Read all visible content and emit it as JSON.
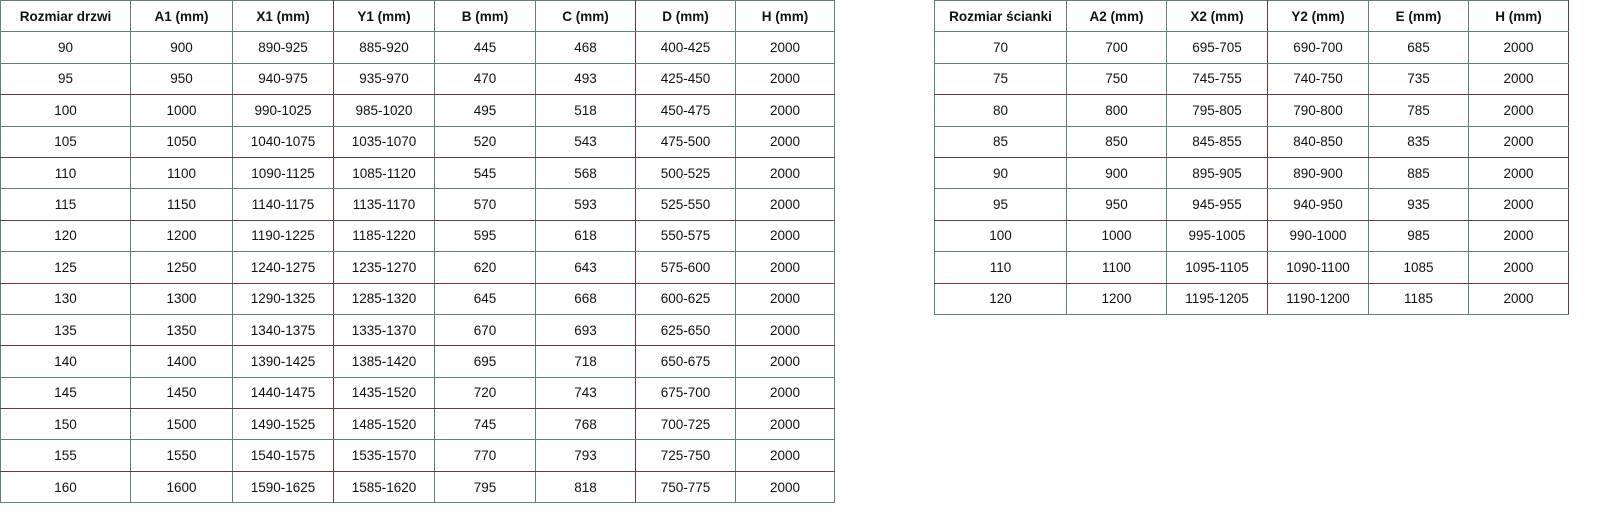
{
  "door_table": {
    "headers": [
      "Rozmiar drzwi",
      "A1 (mm)",
      "X1 (mm)",
      "Y1 (mm)",
      "B (mm)",
      "C (mm)",
      "D (mm)",
      "H (mm)"
    ],
    "rows": [
      [
        "90",
        "900",
        "890-925",
        "885-920",
        "445",
        "468",
        "400-425",
        "2000"
      ],
      [
        "95",
        "950",
        "940-975",
        "935-970",
        "470",
        "493",
        "425-450",
        "2000"
      ],
      [
        "100",
        "1000",
        "990-1025",
        "985-1020",
        "495",
        "518",
        "450-475",
        "2000"
      ],
      [
        "105",
        "1050",
        "1040-1075",
        "1035-1070",
        "520",
        "543",
        "475-500",
        "2000"
      ],
      [
        "110",
        "1100",
        "1090-1125",
        "1085-1120",
        "545",
        "568",
        "500-525",
        "2000"
      ],
      [
        "115",
        "1150",
        "1140-1175",
        "1135-1170",
        "570",
        "593",
        "525-550",
        "2000"
      ],
      [
        "120",
        "1200",
        "1190-1225",
        "1185-1220",
        "595",
        "618",
        "550-575",
        "2000"
      ],
      [
        "125",
        "1250",
        "1240-1275",
        "1235-1270",
        "620",
        "643",
        "575-600",
        "2000"
      ],
      [
        "130",
        "1300",
        "1290-1325",
        "1285-1320",
        "645",
        "668",
        "600-625",
        "2000"
      ],
      [
        "135",
        "1350",
        "1340-1375",
        "1335-1370",
        "670",
        "693",
        "625-650",
        "2000"
      ],
      [
        "140",
        "1400",
        "1390-1425",
        "1385-1420",
        "695",
        "718",
        "650-675",
        "2000"
      ],
      [
        "145",
        "1450",
        "1440-1475",
        "1435-1520",
        "720",
        "743",
        "675-700",
        "2000"
      ],
      [
        "150",
        "1500",
        "1490-1525",
        "1485-1520",
        "745",
        "768",
        "700-725",
        "2000"
      ],
      [
        "155",
        "1550",
        "1540-1575",
        "1535-1570",
        "770",
        "793",
        "725-750",
        "2000"
      ],
      [
        "160",
        "1600",
        "1590-1625",
        "1585-1620",
        "795",
        "818",
        "750-775",
        "2000"
      ]
    ]
  },
  "wall_table": {
    "headers": [
      "Rozmiar ścianki",
      "A2 (mm)",
      "X2 (mm)",
      "Y2 (mm)",
      "E (mm)",
      "H (mm)"
    ],
    "rows": [
      [
        "70",
        "700",
        "695-705",
        "690-700",
        "685",
        "2000"
      ],
      [
        "75",
        "750",
        "745-755",
        "740-750",
        "735",
        "2000"
      ],
      [
        "80",
        "800",
        "795-805",
        "790-800",
        "785",
        "2000"
      ],
      [
        "85",
        "850",
        "845-855",
        "840-850",
        "835",
        "2000"
      ],
      [
        "90",
        "900",
        "895-905",
        "890-900",
        "885",
        "2000"
      ],
      [
        "95",
        "950",
        "945-955",
        "940-950",
        "935",
        "2000"
      ],
      [
        "100",
        "1000",
        "995-1005",
        "990-1000",
        "985",
        "2000"
      ],
      [
        "110",
        "1100",
        "1095-1105",
        "1090-1100",
        "1085",
        "2000"
      ],
      [
        "120",
        "1200",
        "1195-1205",
        "1190-1200",
        "1185",
        "2000"
      ]
    ]
  }
}
